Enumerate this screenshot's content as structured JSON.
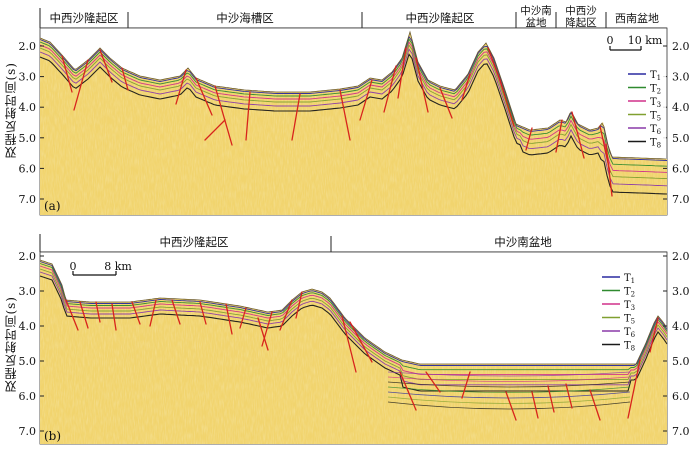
{
  "figure": {
    "y_axis_label": "双程反射时间(s)",
    "legend": [
      "T1",
      "T2",
      "T3",
      "T5",
      "T6",
      "T8"
    ],
    "legend_colors": [
      "#2a2aa0",
      "#2f8a2f",
      "#d0308a",
      "#80a030",
      "#8a3aa8",
      "#1a1a1a"
    ],
    "fault_color": "#d8241c",
    "seismic_color": "#f2d873"
  },
  "panel_a": {
    "tag": "(a)",
    "y_ticks": [
      "2.0",
      "3.0",
      "4.0",
      "5.0",
      "6.0",
      "7.0"
    ],
    "scale_bar": {
      "start": "0",
      "end": "10 km"
    },
    "regions": [
      "中西沙隆起区",
      "中沙海槽区",
      "中西沙隆起区",
      "中沙南\n盆地",
      "中西沙\n降起区",
      "西南盆地"
    ]
  },
  "panel_b": {
    "tag": "(b)",
    "y_ticks": [
      "2.0",
      "3.0",
      "4.0",
      "5.0",
      "6.0",
      "7.0"
    ],
    "scale_bar": {
      "start": "0",
      "end": "8 km"
    },
    "regions": [
      "中西沙隆起区",
      "中沙南盆地"
    ]
  }
}
